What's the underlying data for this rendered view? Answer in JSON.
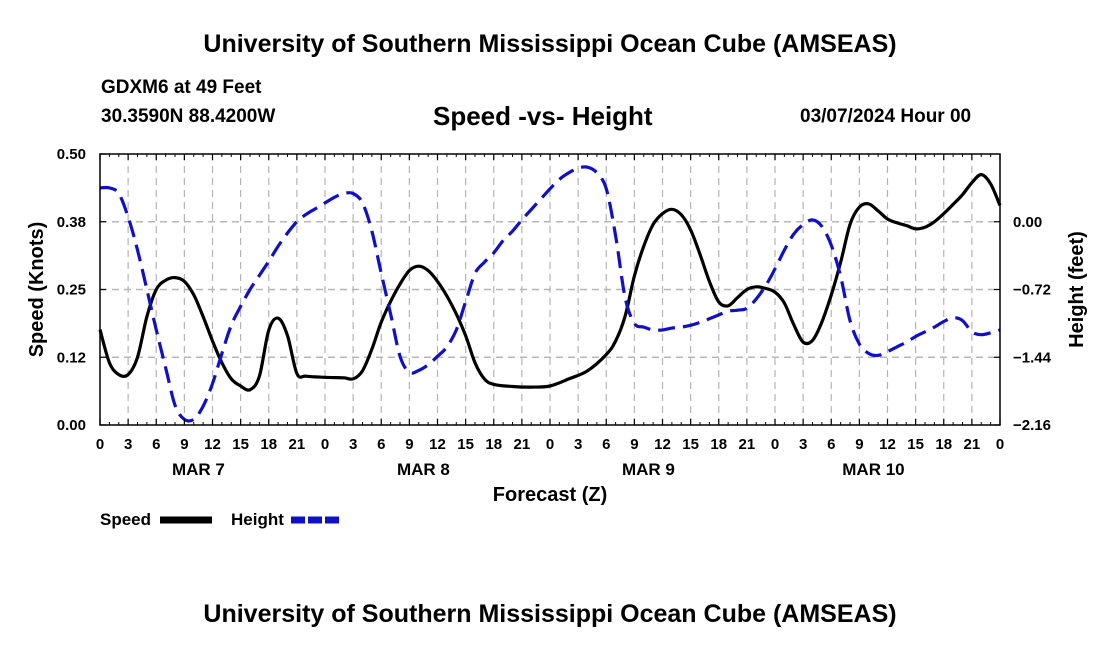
{
  "header": {
    "title": "University of Southern Mississippi Ocean Cube (AMSEAS)",
    "station": "GDXM6 at 49 Feet",
    "coords": "30.3590N  88.4200W",
    "chart_title": "Speed -vs- Height",
    "datetime": "03/07/2024 Hour 00"
  },
  "footer": {
    "title": "University of Southern Mississippi Ocean Cube (AMSEAS)"
  },
  "legend": {
    "speed_label": "Speed",
    "height_label": "Height"
  },
  "colors": {
    "speed": "#000000",
    "height": "#1010c8",
    "grid": "#b4b4b4"
  },
  "chart_data": {
    "type": "line",
    "title": "Speed -vs- Height",
    "xlabel": "Forecast (Z)",
    "ylabel": "Speed (Knots)",
    "y2label": "Height (feet)",
    "x_range": [
      0,
      96
    ],
    "x_tick_step": 3,
    "x_tick_labels": [
      "0",
      "3",
      "6",
      "9",
      "12",
      "15",
      "18",
      "21",
      "0",
      "3",
      "6",
      "9",
      "12",
      "15",
      "18",
      "21",
      "0",
      "3",
      "6",
      "9",
      "12",
      "15",
      "18",
      "21",
      "0",
      "3",
      "6",
      "9",
      "12",
      "15",
      "18",
      "21",
      "0"
    ],
    "day_labels": [
      {
        "label": "MAR 7",
        "x": 10.5
      },
      {
        "label": "MAR 8",
        "x": 34.5
      },
      {
        "label": "MAR 9",
        "x": 58.5
      },
      {
        "label": "MAR 10",
        "x": 82.5
      }
    ],
    "ylim": [
      0,
      0.5
    ],
    "yticks": [
      0,
      0.125,
      0.25,
      0.375,
      0.5
    ],
    "ytick_labels": [
      "0.00",
      "0.12",
      "0.25",
      "0.38",
      "0.50"
    ],
    "y2lim": [
      -2.16,
      0.72
    ],
    "y2ticks": [
      -2.16,
      -1.44,
      -0.72,
      0.0
    ],
    "y2tick_labels": [
      "−2.16",
      "−1.44",
      "−0.72",
      "0.00"
    ],
    "series": [
      {
        "name": "Speed",
        "axis": "left",
        "style": "solid",
        "x": [
          0,
          1,
          2,
          3,
          4,
          5,
          6,
          7,
          8,
          9,
          10,
          11,
          12,
          13,
          14,
          15,
          16,
          17,
          18,
          19,
          20,
          21,
          22,
          24,
          26,
          27,
          28,
          29,
          30,
          31,
          32,
          33,
          34,
          35,
          36,
          37,
          38,
          39,
          40,
          41,
          42,
          44,
          46,
          48,
          50,
          52,
          54,
          55,
          56,
          57,
          58,
          59,
          60,
          61,
          62,
          63,
          64,
          65,
          66,
          67,
          68,
          69,
          70,
          71,
          72,
          73,
          74,
          75,
          76,
          77,
          78,
          79,
          80,
          81,
          82,
          83,
          84,
          85,
          86,
          87,
          88,
          89,
          90,
          91,
          92,
          93,
          94,
          95,
          96
        ],
        "values": [
          0.176,
          0.115,
          0.093,
          0.093,
          0.125,
          0.2,
          0.25,
          0.267,
          0.272,
          0.265,
          0.24,
          0.2,
          0.155,
          0.115,
          0.085,
          0.072,
          0.065,
          0.09,
          0.175,
          0.197,
          0.165,
          0.095,
          0.09,
          0.088,
          0.087,
          0.085,
          0.1,
          0.14,
          0.19,
          0.228,
          0.26,
          0.285,
          0.293,
          0.285,
          0.265,
          0.238,
          0.205,
          0.165,
          0.115,
          0.085,
          0.075,
          0.071,
          0.07,
          0.072,
          0.085,
          0.1,
          0.13,
          0.155,
          0.2,
          0.275,
          0.33,
          0.37,
          0.39,
          0.398,
          0.388,
          0.36,
          0.315,
          0.265,
          0.227,
          0.22,
          0.235,
          0.25,
          0.255,
          0.252,
          0.245,
          0.225,
          0.185,
          0.153,
          0.156,
          0.19,
          0.24,
          0.3,
          0.37,
          0.402,
          0.408,
          0.395,
          0.38,
          0.373,
          0.368,
          0.362,
          0.365,
          0.375,
          0.39,
          0.407,
          0.425,
          0.447,
          0.462,
          0.445,
          0.405
        ]
      },
      {
        "name": "Height",
        "axis": "right",
        "style": "dashed",
        "x": [
          0,
          1,
          2,
          3,
          4,
          5,
          6,
          7,
          8,
          9,
          10,
          11,
          12,
          13,
          14,
          15,
          16,
          17,
          18,
          19,
          20,
          21,
          22,
          23,
          24,
          25,
          26,
          27,
          28,
          29,
          30,
          31,
          32,
          33,
          34,
          35,
          36,
          37,
          38,
          39,
          40,
          41,
          42,
          43,
          44,
          45,
          46,
          47,
          48,
          49,
          50,
          51,
          52,
          53,
          54,
          55,
          56,
          57,
          58,
          59,
          60,
          61,
          62,
          63,
          64,
          65,
          66,
          67,
          68,
          69,
          70,
          71,
          72,
          73,
          74,
          75,
          76,
          77,
          78,
          79,
          80,
          81,
          82,
          83,
          84,
          85,
          86,
          87,
          88,
          89,
          90,
          91,
          92,
          93,
          94,
          95,
          96
        ],
        "values": [
          0.36,
          0.36,
          0.3,
          0.05,
          -0.3,
          -0.72,
          -1.15,
          -1.55,
          -1.95,
          -2.1,
          -2.1,
          -1.96,
          -1.72,
          -1.4,
          -1.1,
          -0.9,
          -0.72,
          -0.57,
          -0.42,
          -0.26,
          -0.12,
          0.0,
          0.08,
          0.14,
          0.2,
          0.26,
          0.3,
          0.3,
          0.2,
          -0.1,
          -0.55,
          -0.98,
          -1.43,
          -1.6,
          -1.58,
          -1.52,
          -1.43,
          -1.33,
          -1.15,
          -0.85,
          -0.55,
          -0.43,
          -0.33,
          -0.2,
          -0.1,
          0.02,
          0.13,
          0.24,
          0.35,
          0.45,
          0.52,
          0.57,
          0.58,
          0.52,
          0.35,
          -0.15,
          -0.8,
          -1.08,
          -1.12,
          -1.15,
          -1.15,
          -1.13,
          -1.12,
          -1.1,
          -1.07,
          -1.03,
          -0.99,
          -0.95,
          -0.94,
          -0.92,
          -0.82,
          -0.68,
          -0.5,
          -0.3,
          -0.13,
          -0.03,
          0.02,
          -0.05,
          -0.25,
          -0.58,
          -1.05,
          -1.3,
          -1.4,
          -1.42,
          -1.38,
          -1.33,
          -1.28,
          -1.22,
          -1.17,
          -1.12,
          -1.06,
          -1.02,
          -1.05,
          -1.17,
          -1.2,
          -1.18,
          -1.15
        ]
      }
    ]
  }
}
